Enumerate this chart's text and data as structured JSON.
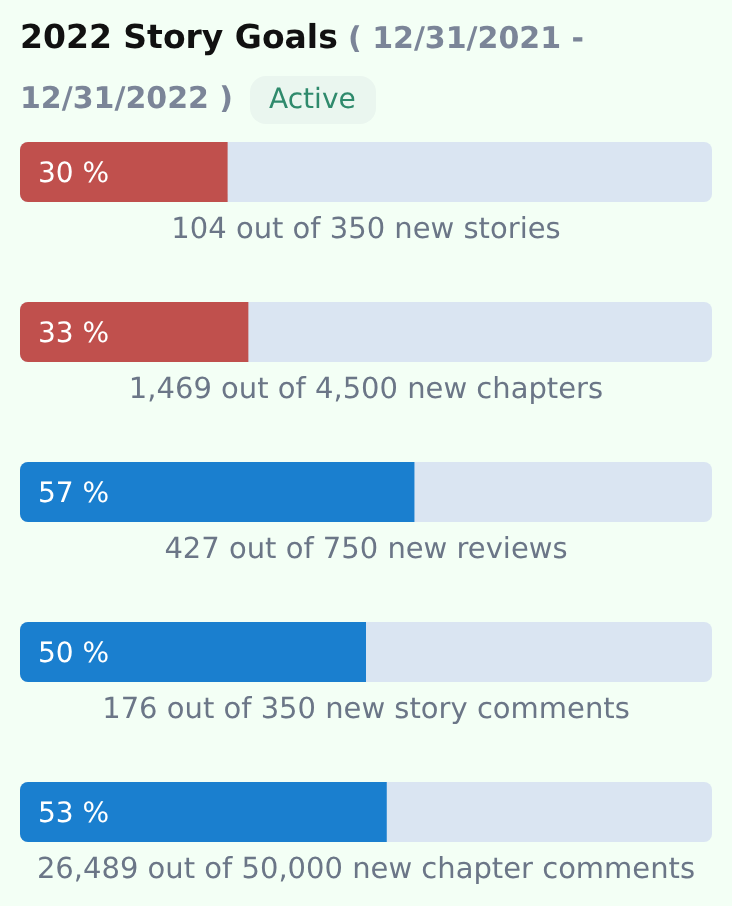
{
  "chart_data": {
    "type": "bar",
    "orientation": "horizontal",
    "title": "2022 Story Goals",
    "subtitle": "( 12/31/2021 - 12/31/2022 )",
    "annotations": [
      "Active"
    ],
    "categories": [
      "104 out of 350 new stories",
      "1,469 out of 4,500 new chapters",
      "427 out of 750 new reviews",
      "176 out of 350 new story comments",
      "26,489 out of 50,000 new chapter comments"
    ],
    "values": [
      30,
      33,
      57,
      50,
      53
    ],
    "colors": [
      "#c0504d",
      "#c0504d",
      "#1a7fcf",
      "#1a7fcf",
      "#1a7fcf"
    ],
    "value_labels": [
      "30 %",
      "33 %",
      "57 %",
      "50 %",
      "53 %"
    ],
    "xlim": [
      0,
      100
    ],
    "tick_labels": "y"
  }
}
